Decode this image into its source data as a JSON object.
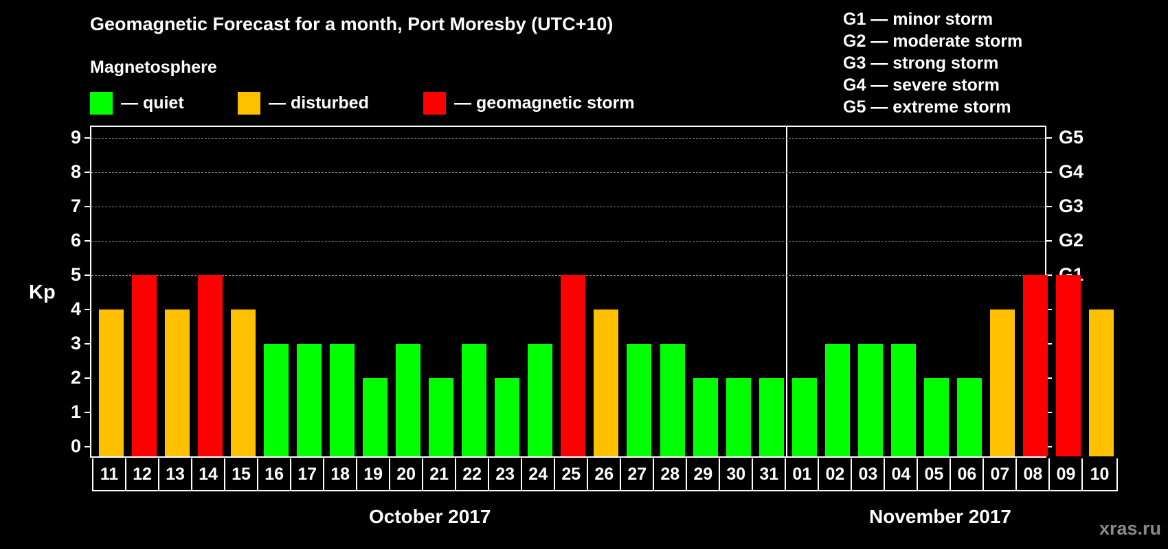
{
  "header": {
    "title": "Geomagnetic Forecast for a month, Port Moresby (UTC+10)",
    "subtitle": "Magnetosphere"
  },
  "legend": [
    {
      "label": "— quiet",
      "color": "#00ff00"
    },
    {
      "label": "— disturbed",
      "color": "#ffc000"
    },
    {
      "label": "— geomagnetic storm",
      "color": "#ff0000"
    }
  ],
  "g_scale_legend": [
    "G1 — minor storm",
    "G2 — moderate storm",
    "G3 — strong storm",
    "G4 — severe storm",
    "G5 — extreme storm"
  ],
  "axis": {
    "ylabel": "Kp",
    "yticks": [
      "0",
      "1",
      "2",
      "3",
      "4",
      "5",
      "6",
      "7",
      "8",
      "9"
    ],
    "right_ticks": {
      "5": "G1",
      "6": "G2",
      "7": "G3",
      "8": "G4",
      "9": "G5"
    }
  },
  "months": [
    {
      "label": "October 2017"
    },
    {
      "label": "November 2017"
    }
  ],
  "watermark": "xras.ru",
  "colors": {
    "quiet": "#00ff00",
    "disturbed": "#ffc000",
    "storm": "#ff0000",
    "background": "#000000",
    "grid": "#8a8a8a"
  },
  "chart_data": {
    "type": "bar",
    "title": "Geomagnetic Forecast for a month, Port Moresby (UTC+10)",
    "xlabel": "",
    "ylabel": "Kp",
    "ylim": [
      0,
      9
    ],
    "grid": "dashed horizontal at 5,6,7,8,9",
    "legend_position": "top",
    "categories": [
      "11",
      "12",
      "13",
      "14",
      "15",
      "16",
      "17",
      "18",
      "19",
      "20",
      "21",
      "22",
      "23",
      "24",
      "25",
      "26",
      "27",
      "28",
      "29",
      "30",
      "31",
      "01",
      "02",
      "03",
      "04",
      "05",
      "06",
      "07",
      "08",
      "09",
      "10"
    ],
    "x_groups": [
      {
        "label": "October 2017",
        "from": "11",
        "to": "31"
      },
      {
        "label": "November 2017",
        "from": "01",
        "to": "10"
      }
    ],
    "values": [
      4,
      5,
      4,
      5,
      4,
      3,
      3,
      3,
      2,
      3,
      2,
      3,
      2,
      3,
      5,
      4,
      3,
      3,
      2,
      2,
      2,
      2,
      3,
      3,
      3,
      2,
      2,
      4,
      5,
      5,
      4
    ],
    "status": [
      "disturbed",
      "storm",
      "disturbed",
      "storm",
      "disturbed",
      "quiet",
      "quiet",
      "quiet",
      "quiet",
      "quiet",
      "quiet",
      "quiet",
      "quiet",
      "quiet",
      "storm",
      "disturbed",
      "quiet",
      "quiet",
      "quiet",
      "quiet",
      "quiet",
      "quiet",
      "quiet",
      "quiet",
      "quiet",
      "quiet",
      "quiet",
      "disturbed",
      "storm",
      "storm",
      "disturbed"
    ],
    "secondary_yaxis": {
      "5": "G1",
      "6": "G2",
      "7": "G3",
      "8": "G4",
      "9": "G5"
    }
  }
}
